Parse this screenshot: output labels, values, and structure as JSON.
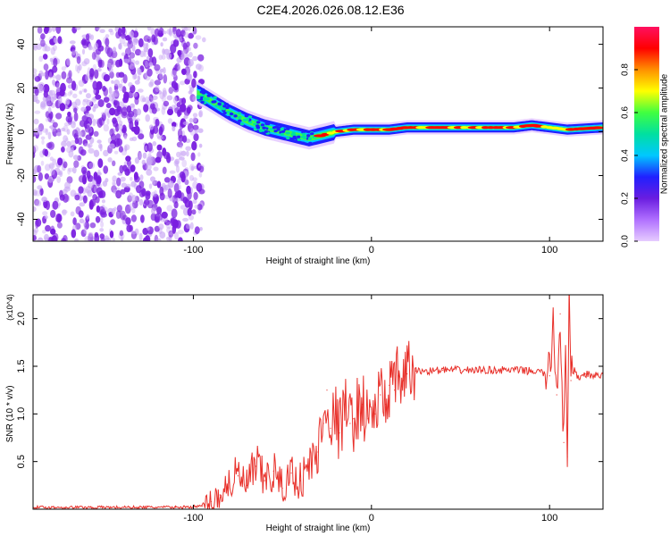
{
  "title": "C2E4.2026.026.08.12.E36",
  "colors": {
    "signal_line": "#e8302a",
    "axis": "#000000",
    "scatter": "#7a1fe0",
    "scatter_light": "#c9a6f5",
    "colormap": [
      "#e6ccff",
      "#b070ff",
      "#6a1de0",
      "#2020ff",
      "#00c8ff",
      "#00e0a0",
      "#40ff40",
      "#ffff00",
      "#ff9000",
      "#ff0000",
      "#ff1060"
    ]
  },
  "chart_data": [
    {
      "type": "heatmap",
      "name": "spectrogram",
      "xlabel": "Height of straight line (km)",
      "ylabel": "Frequency (Hz)",
      "xlim": [
        -190,
        130
      ],
      "ylim": [
        -50,
        48
      ],
      "xticks": [
        -100,
        0,
        100
      ],
      "yticks": [
        -40,
        -20,
        0,
        20,
        40
      ],
      "xtick_labels": [
        "-100",
        "0",
        "100"
      ],
      "ytick_labels": [
        "-40",
        "-20",
        "0",
        "20",
        "40"
      ],
      "noise_region_x": [
        -190,
        -95
      ],
      "ridge": {
        "x": [
          -98,
          -90,
          -80,
          -70,
          -60,
          -50,
          -40,
          -35,
          -30,
          -20,
          -10,
          0,
          10,
          20,
          40,
          60,
          80,
          90,
          100,
          110,
          130
        ],
        "y": [
          18,
          14,
          9,
          5,
          2,
          0,
          -2,
          -3,
          -2,
          0,
          1,
          1,
          1,
          2,
          2,
          2,
          2,
          3,
          2,
          1,
          2
        ]
      },
      "colorbar": {
        "label": "Normalized spectral amplitude",
        "range": [
          0,
          1
        ],
        "ticks": [
          0.0,
          0.2,
          0.4,
          0.6,
          0.8
        ],
        "tick_labels": [
          "0.0",
          "0.2",
          "0.4",
          "0.6",
          "0.8"
        ]
      }
    },
    {
      "type": "line",
      "name": "snr",
      "xlabel": "Height of straight line (km)",
      "ylabel": "SNR (10 * v/v)",
      "exponent_label": "(x10^4)",
      "xlim": [
        -190,
        130
      ],
      "ylim": [
        0,
        2.25
      ],
      "xticks": [
        -100,
        0,
        100
      ],
      "yticks": [
        0.5,
        1.0,
        1.5,
        2.0
      ],
      "xtick_labels": [
        "-100",
        "0",
        "100"
      ],
      "ytick_labels": [
        "0.5",
        "1.0",
        "1.5",
        "2.0"
      ],
      "x": [
        -190,
        -110,
        -95,
        -90,
        -85,
        -80,
        -75,
        -70,
        -65,
        -60,
        -55,
        -50,
        -45,
        -40,
        -35,
        -30,
        -27,
        -25,
        -23,
        -20,
        -18,
        -15,
        -12,
        -10,
        -8,
        -5,
        -2,
        0,
        2,
        5,
        8,
        10,
        13,
        15,
        18,
        20,
        25,
        30,
        40,
        50,
        60,
        70,
        80,
        90,
        95,
        100,
        102,
        104,
        106,
        108,
        109,
        110,
        111,
        112,
        114,
        116,
        120,
        125,
        130
      ],
      "y": [
        0.02,
        0.02,
        0.03,
        0.08,
        0.15,
        0.28,
        0.35,
        0.25,
        0.45,
        0.3,
        0.4,
        0.22,
        0.38,
        0.3,
        0.45,
        0.6,
        0.9,
        1.25,
        0.85,
        1.0,
        0.8,
        1.1,
        0.9,
        0.95,
        1.05,
        1.1,
        0.95,
        1.05,
        1.0,
        1.2,
        1.1,
        1.3,
        1.25,
        1.4,
        1.35,
        1.42,
        1.45,
        1.45,
        1.46,
        1.46,
        1.46,
        1.46,
        1.46,
        1.45,
        1.44,
        1.4,
        2.0,
        1.2,
        2.05,
        0.7,
        1.5,
        0.55,
        2.2,
        1.35,
        1.45,
        1.38,
        1.42,
        1.4,
        1.4
      ]
    }
  ]
}
